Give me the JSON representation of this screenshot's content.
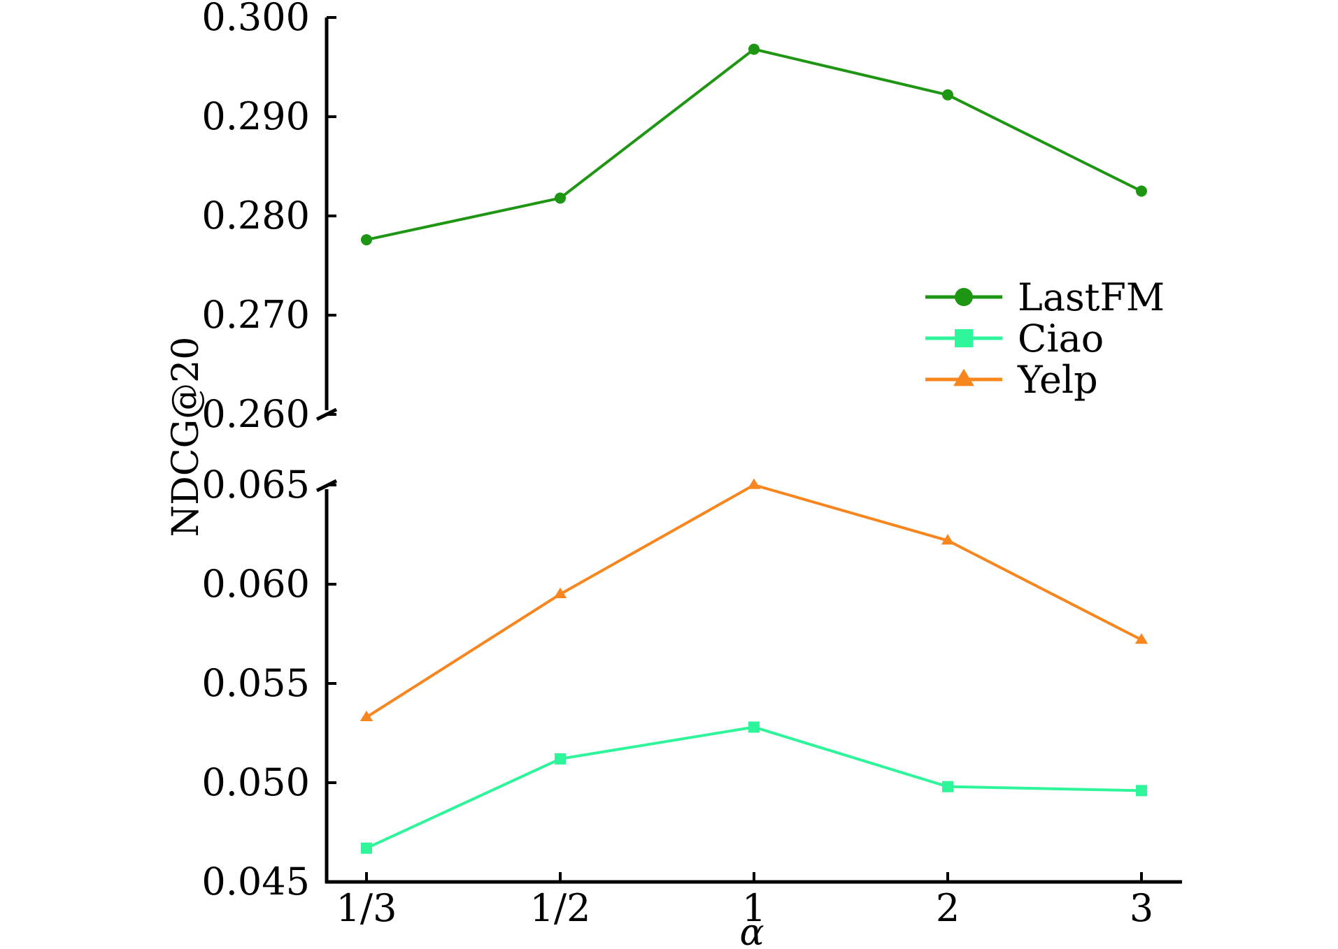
{
  "chart_data": {
    "type": "line",
    "xlabel": "α",
    "ylabel": "NDCG@20",
    "categories": [
      "1/3",
      "1/2",
      "1",
      "2",
      "3"
    ],
    "y_axis_break": true,
    "upper_panel": {
      "ylim": [
        0.26,
        0.3
      ],
      "yticks": [
        "0.300",
        "0.290",
        "0.280",
        "0.270",
        "0.260"
      ],
      "series": [
        "LastFM"
      ]
    },
    "lower_panel": {
      "ylim": [
        0.045,
        0.065
      ],
      "yticks": [
        "0.065",
        "0.060",
        "0.055",
        "0.050",
        "0.045"
      ],
      "series": [
        "Ciao",
        "Yelp"
      ]
    },
    "series": [
      {
        "name": "LastFM",
        "color": "#1e9614",
        "marker": "circle",
        "panel": "upper",
        "values": [
          0.2776,
          0.2818,
          0.2968,
          0.2922,
          0.2825
        ]
      },
      {
        "name": "Ciao",
        "color": "#2ef59a",
        "marker": "square",
        "panel": "lower",
        "values": [
          0.0467,
          0.0512,
          0.0528,
          0.0498,
          0.0496
        ]
      },
      {
        "name": "Yelp",
        "color": "#f7861e",
        "marker": "triangle",
        "panel": "lower",
        "values": [
          0.0533,
          0.0595,
          0.065,
          0.0622,
          0.0572
        ]
      }
    ],
    "legend": {
      "position": "right-middle",
      "entries": [
        "LastFM",
        "Ciao",
        "Yelp"
      ]
    },
    "grid": false
  }
}
